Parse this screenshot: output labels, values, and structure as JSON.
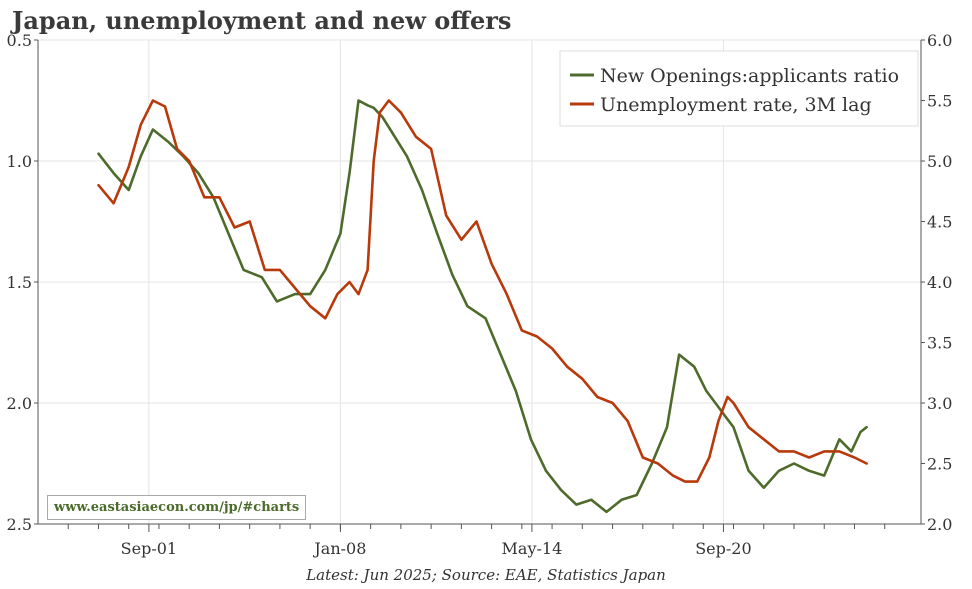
{
  "page": {
    "title": "Japan, unemployment and new offers",
    "footer": "Latest: Jun 2025; Source: EAE, Statistics Japan",
    "watermark": "www.eastasiaecon.com/jp/#charts"
  },
  "colors": {
    "green": "#4e6b2c",
    "orange": "#b83a0c",
    "grid": "#e4e4e4",
    "axis": "#555555"
  },
  "chart_data": {
    "type": "line",
    "title": "Japan, unemployment and new offers",
    "x_ticks": [
      "Sep-01",
      "Jan-08",
      "May-14",
      "Sep-20"
    ],
    "y_left": {
      "ticks": [
        "0.5",
        "1.0",
        "1.5",
        "2.0",
        "2.5"
      ],
      "range": [
        0.5,
        2.5
      ],
      "inverted": true
    },
    "y_right": {
      "ticks": [
        "6.0",
        "5.5",
        "5.0",
        "4.5",
        "4.0",
        "3.5",
        "3.0",
        "2.5",
        "2.0"
      ],
      "range": [
        2.0,
        6.0
      ]
    },
    "legend": {
      "placement": "top-right"
    },
    "grid": true,
    "series": [
      {
        "name": "New Openings:applicants ratio",
        "axis": "left",
        "color": "#4e6b2c",
        "x": [
          2000.0,
          2000.5,
          2001.0,
          2001.4,
          2001.8,
          2002.3,
          2002.8,
          2003.3,
          2003.8,
          2004.3,
          2004.8,
          2005.4,
          2005.9,
          2006.5,
          2007.0,
          2007.5,
          2008.0,
          2008.3,
          2008.6,
          2008.9,
          2009.1,
          2009.4,
          2009.7,
          2010.2,
          2010.7,
          2011.2,
          2011.7,
          2012.2,
          2012.8,
          2013.3,
          2013.8,
          2014.3,
          2014.8,
          2015.3,
          2015.8,
          2016.3,
          2016.8,
          2017.3,
          2017.8,
          2018.3,
          2018.8,
          2019.2,
          2019.7,
          2020.1,
          2020.4,
          2020.7,
          2021.0,
          2021.5,
          2022.0,
          2022.5,
          2023.0,
          2023.5,
          2024.0,
          2024.5,
          2024.9,
          2025.2,
          2025.4
        ],
        "values": [
          0.97,
          1.05,
          1.12,
          0.98,
          0.87,
          0.92,
          0.98,
          1.05,
          1.15,
          1.3,
          1.45,
          1.48,
          1.58,
          1.55,
          1.55,
          1.45,
          1.3,
          1.05,
          0.75,
          0.77,
          0.78,
          0.82,
          0.88,
          0.98,
          1.12,
          1.3,
          1.47,
          1.6,
          1.65,
          1.8,
          1.95,
          2.15,
          2.28,
          2.36,
          2.42,
          2.4,
          2.45,
          2.4,
          2.38,
          2.25,
          2.1,
          1.8,
          1.85,
          1.95,
          2.0,
          2.05,
          2.1,
          2.28,
          2.35,
          2.28,
          2.25,
          2.28,
          2.3,
          2.15,
          2.2,
          2.12,
          2.1
        ]
      },
      {
        "name": "Unemployment rate, 3M lag",
        "axis": "right",
        "color": "#b83a0c",
        "x": [
          2000.0,
          2000.5,
          2001.0,
          2001.4,
          2001.8,
          2002.2,
          2002.6,
          2003.0,
          2003.5,
          2004.0,
          2004.5,
          2005.0,
          2005.5,
          2006.0,
          2006.5,
          2007.0,
          2007.5,
          2007.9,
          2008.3,
          2008.6,
          2008.9,
          2009.1,
          2009.3,
          2009.6,
          2010.0,
          2010.5,
          2011.0,
          2011.5,
          2012.0,
          2012.5,
          2013.0,
          2013.5,
          2014.0,
          2014.5,
          2015.0,
          2015.5,
          2016.0,
          2016.5,
          2017.0,
          2017.5,
          2018.0,
          2018.5,
          2019.0,
          2019.4,
          2019.8,
          2020.2,
          2020.5,
          2020.8,
          2021.0,
          2021.5,
          2022.0,
          2022.5,
          2023.0,
          2023.5,
          2024.0,
          2024.5,
          2025.0,
          2025.4
        ],
        "values": [
          4.8,
          4.65,
          4.95,
          5.3,
          5.5,
          5.45,
          5.1,
          5.0,
          4.7,
          4.7,
          4.45,
          4.5,
          4.1,
          4.1,
          3.95,
          3.8,
          3.7,
          3.9,
          4.0,
          3.9,
          4.1,
          5.0,
          5.4,
          5.5,
          5.4,
          5.2,
          5.1,
          4.55,
          4.35,
          4.5,
          4.15,
          3.9,
          3.6,
          3.55,
          3.45,
          3.3,
          3.2,
          3.05,
          3.0,
          2.85,
          2.55,
          2.5,
          2.4,
          2.35,
          2.35,
          2.55,
          2.85,
          3.05,
          3.0,
          2.8,
          2.7,
          2.6,
          2.6,
          2.55,
          2.6,
          2.6,
          2.55,
          2.5
        ]
      }
    ]
  }
}
